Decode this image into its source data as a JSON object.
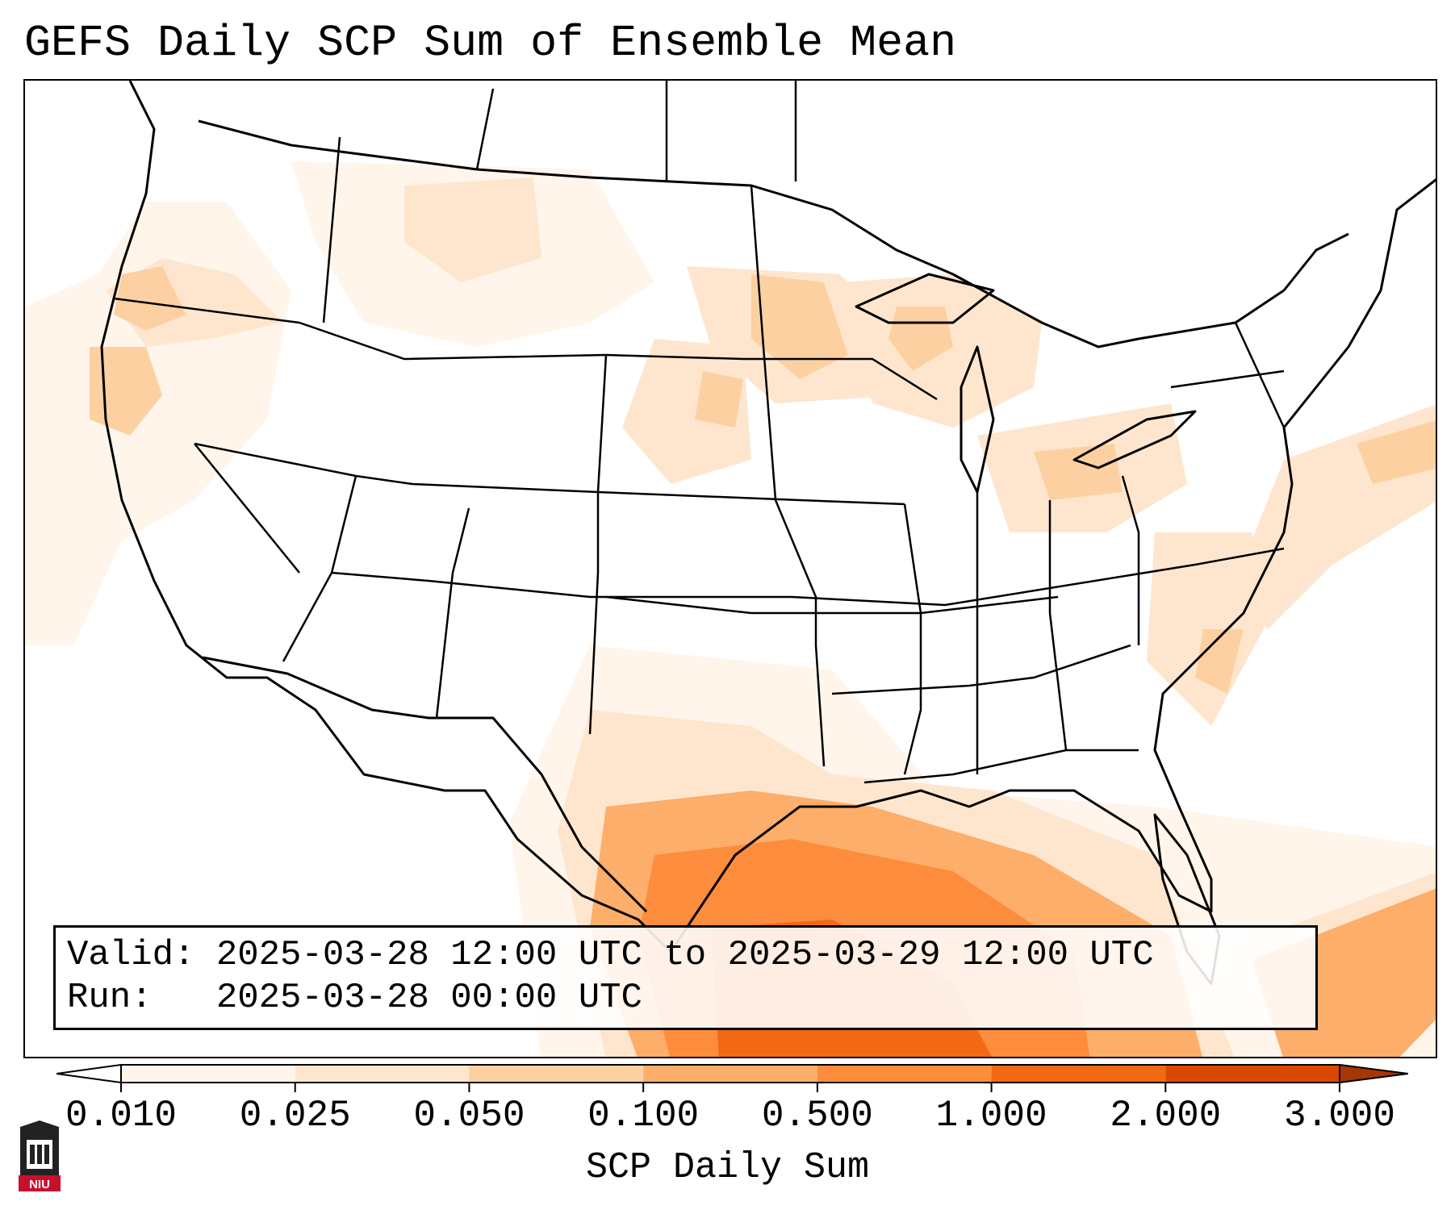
{
  "title": "GEFS Daily SCP Sum of Ensemble Mean",
  "valid_line": "Valid: 2025-03-28 12:00 UTC to 2025-03-29 12:00 UTC",
  "run_line": "Run:   2025-03-28 00:00 UTC",
  "colorbar": {
    "label": "SCP Daily Sum",
    "ticks": [
      "0.010",
      "0.025",
      "0.050",
      "0.100",
      "0.500",
      "1.000",
      "2.000",
      "3.000"
    ],
    "colors": [
      "#fff5eb",
      "#fee6ce",
      "#fdd0a2",
      "#fdae6b",
      "#fd8d3c",
      "#f16913",
      "#d94801",
      "#a63603"
    ]
  },
  "chart_data": {
    "type": "heatmap",
    "title": "GEFS Daily SCP Sum of Ensemble Mean",
    "colorbar_label": "SCP Daily Sum",
    "levels": [
      0.01,
      0.025,
      0.05,
      0.1,
      0.5,
      1.0,
      2.0,
      3.0
    ],
    "region": "Contiguous United States",
    "valid": "2025-03-28 12:00 UTC to 2025-03-29 12:00 UTC",
    "run": "2025-03-28 00:00 UTC"
  },
  "logo": {
    "text": "NIU"
  }
}
